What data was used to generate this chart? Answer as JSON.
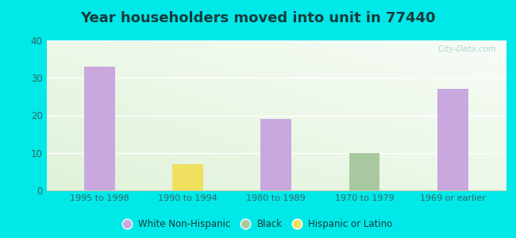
{
  "title": "Year householders moved into unit in 77440",
  "categories": [
    "1995 to 1998",
    "1990 to 1994",
    "1980 to 1989",
    "1970 to 1979",
    "1969 or earlier"
  ],
  "series": {
    "White Non-Hispanic": [
      33,
      0,
      19,
      0,
      27
    ],
    "Black": [
      0,
      0,
      0,
      10,
      0
    ],
    "Hispanic or Latino": [
      0,
      7,
      0,
      0,
      0
    ]
  },
  "colors": {
    "White Non-Hispanic": "#c9a8e0",
    "Black": "#a8c8a0",
    "Hispanic or Latino": "#f0e060"
  },
  "ylim": [
    0,
    40
  ],
  "yticks": [
    0,
    10,
    20,
    30,
    40
  ],
  "background_outer": "#00e8e8",
  "title_fontsize": 13,
  "bar_width": 0.35,
  "watermark": "City-Data.com"
}
